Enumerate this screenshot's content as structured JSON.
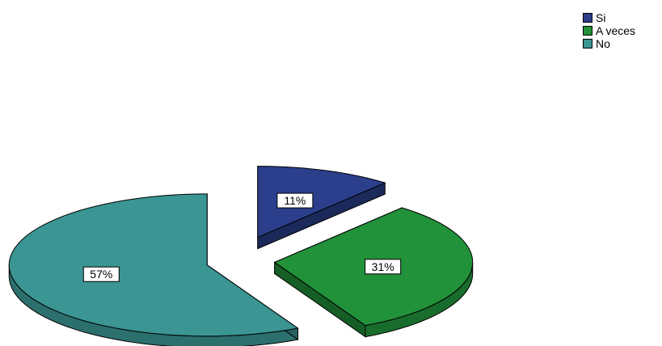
{
  "chart_data": {
    "type": "pie",
    "style": "3d-exploded",
    "categories": [
      "Si",
      "A veces",
      "No"
    ],
    "values": [
      11,
      31,
      57
    ],
    "labels": [
      "11%",
      "31%",
      "57%"
    ],
    "colors": [
      "#2b3f8c",
      "#21913a",
      "#3a9593"
    ],
    "legend_position": "top-right"
  },
  "legend": {
    "items": [
      {
        "label": "Si",
        "color": "#2b3f8c"
      },
      {
        "label": "A veces",
        "color": "#21913a"
      },
      {
        "label": "No",
        "color": "#3a9593"
      }
    ]
  }
}
